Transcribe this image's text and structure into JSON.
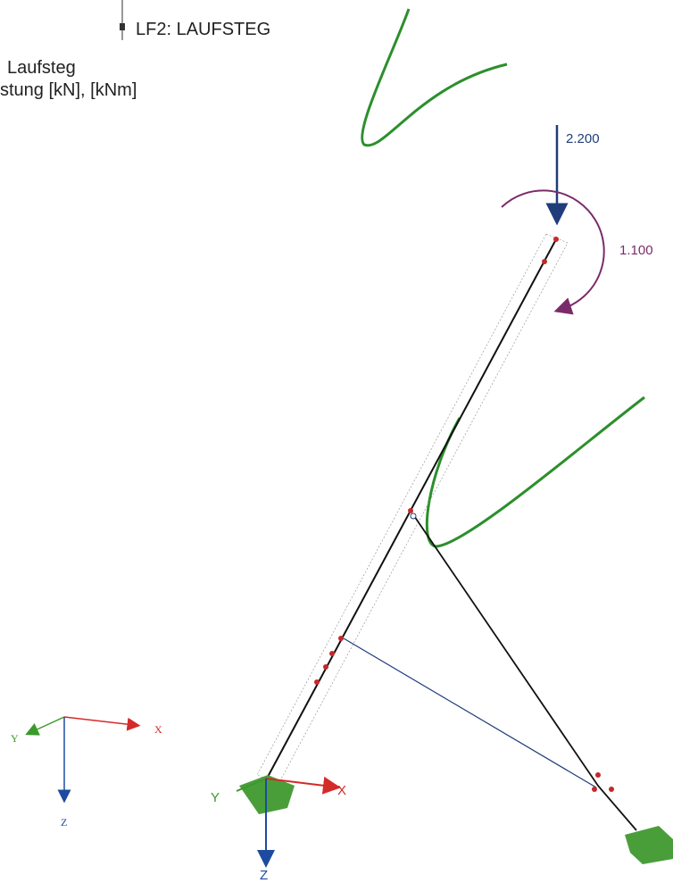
{
  "header": {
    "load_case": "LF2: LAUFSTEG",
    "title": "Laufsteg",
    "units": "stung [kN], [kNm]"
  },
  "loads": {
    "force": "2.200",
    "moment": "1.100"
  },
  "global_axes": {
    "x": "X",
    "y": "Y",
    "z": "Z"
  },
  "support_axes": {
    "x": "X",
    "y": "Y",
    "z": "Z"
  }
}
